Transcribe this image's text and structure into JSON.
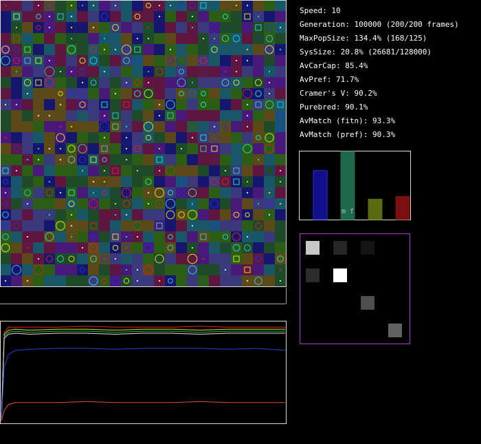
{
  "stats": [
    "Speed: 10",
    "Generation: 100000 (200/200 frames)",
    "MaxPopSize: 134.4% (168/125)",
    "SysSize: 20.8% (26681/128000)",
    "AvCarCap: 85.4%",
    "AvPref: 71.7%",
    "Cramer's V: 90.2%",
    "Purebred: 90.1%",
    "AvMatch (fitn): 93.3%",
    "AvMatch (pref): 90.3%"
  ],
  "chart_data": [
    {
      "type": "bar",
      "categories": [
        null,
        null,
        null,
        null
      ],
      "label": "m f",
      "values": [
        72,
        100,
        30,
        34
      ],
      "colors": [
        "#10108a",
        "#1e6a4a",
        "#5a6a10",
        "#7a1010"
      ],
      "ylim": [
        0,
        100
      ]
    },
    {
      "type": "line",
      "x": [
        0,
        2,
        5,
        10,
        20,
        40,
        60,
        80,
        100,
        120,
        140,
        160,
        180,
        200
      ],
      "xlim": [
        0,
        200
      ],
      "ylim": [
        0,
        1
      ],
      "series": [
        {
          "color": "#e02020",
          "values": [
            0.02,
            0.9,
            0.95,
            0.95,
            0.95,
            0.95,
            0.96,
            0.95,
            0.95,
            0.95,
            0.96,
            0.95,
            0.95,
            0.95
          ]
        },
        {
          "color": "#e0e020",
          "values": [
            0.02,
            0.88,
            0.92,
            0.93,
            0.92,
            0.93,
            0.93,
            0.92,
            0.93,
            0.93,
            0.92,
            0.93,
            0.93,
            0.93
          ]
        },
        {
          "color": "#20c040",
          "values": [
            0.02,
            0.86,
            0.9,
            0.91,
            0.9,
            0.91,
            0.91,
            0.9,
            0.91,
            0.91,
            0.9,
            0.91,
            0.91,
            0.91
          ]
        },
        {
          "color": "#e0e0e0",
          "values": [
            0.02,
            0.84,
            0.88,
            0.89,
            0.88,
            0.89,
            0.89,
            0.88,
            0.89,
            0.89,
            0.88,
            0.89,
            0.89,
            0.89
          ]
        },
        {
          "color": "#2040e0",
          "values": [
            0.02,
            0.55,
            0.68,
            0.72,
            0.73,
            0.74,
            0.74,
            0.73,
            0.74,
            0.74,
            0.74,
            0.73,
            0.74,
            0.72
          ]
        },
        {
          "color": "#e05030",
          "values": [
            0.02,
            0.12,
            0.18,
            0.2,
            0.2,
            0.2,
            0.21,
            0.2,
            0.2,
            0.2,
            0.21,
            0.2,
            0.2,
            0.2
          ]
        }
      ]
    },
    {
      "type": "heatmap",
      "values": [
        [
          0.78,
          0.15,
          0.08,
          0
        ],
        [
          0.17,
          1,
          0,
          0
        ],
        [
          0,
          0,
          0.3,
          0
        ],
        [
          0,
          0,
          0,
          0.38
        ]
      ]
    }
  ]
}
